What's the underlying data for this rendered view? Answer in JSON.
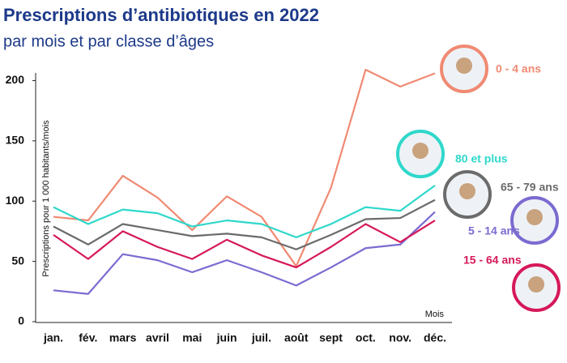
{
  "chart_data": {
    "type": "line",
    "title": "Prescriptions d’antibiotiques en 2022",
    "subtitle": "par mois et par classe d’âges",
    "y_label": "Prescriptions pour 1 000 habitants/mois",
    "x_label": "Mois",
    "categories": [
      "jan.",
      "fév.",
      "mars",
      "avril",
      "mai",
      "juin",
      "juil.",
      "août",
      "sept",
      "oct.",
      "nov.",
      "déc."
    ],
    "series": [
      {
        "name": "0 - 4 ans",
        "color": "#f08a73",
        "values": [
          87,
          84,
          121,
          103,
          76,
          104,
          87,
          46,
          111,
          209,
          195,
          206
        ]
      },
      {
        "name": "80 et plus",
        "color": "#2fd8cb",
        "values": [
          95,
          81,
          93,
          90,
          79,
          84,
          81,
          70,
          81,
          95,
          92,
          113
        ]
      },
      {
        "name": "65 - 79 ans",
        "color": "#6b6b6b",
        "values": [
          79,
          64,
          81,
          76,
          71,
          73,
          70,
          60,
          72,
          85,
          86,
          101
        ]
      },
      {
        "name": "5 - 14 ans",
        "color": "#7b6bd0",
        "values": [
          26,
          23,
          56,
          51,
          41,
          51,
          41,
          30,
          45,
          61,
          64,
          91
        ]
      },
      {
        "name": "15 - 64 ans",
        "color": "#d6185a",
        "values": [
          72,
          52,
          75,
          62,
          52,
          68,
          55,
          45,
          62,
          81,
          66,
          84
        ]
      }
    ],
    "ylim": [
      0,
      205
    ],
    "yticks": [
      0,
      50,
      100,
      150,
      200
    ],
    "grid": false
  }
}
